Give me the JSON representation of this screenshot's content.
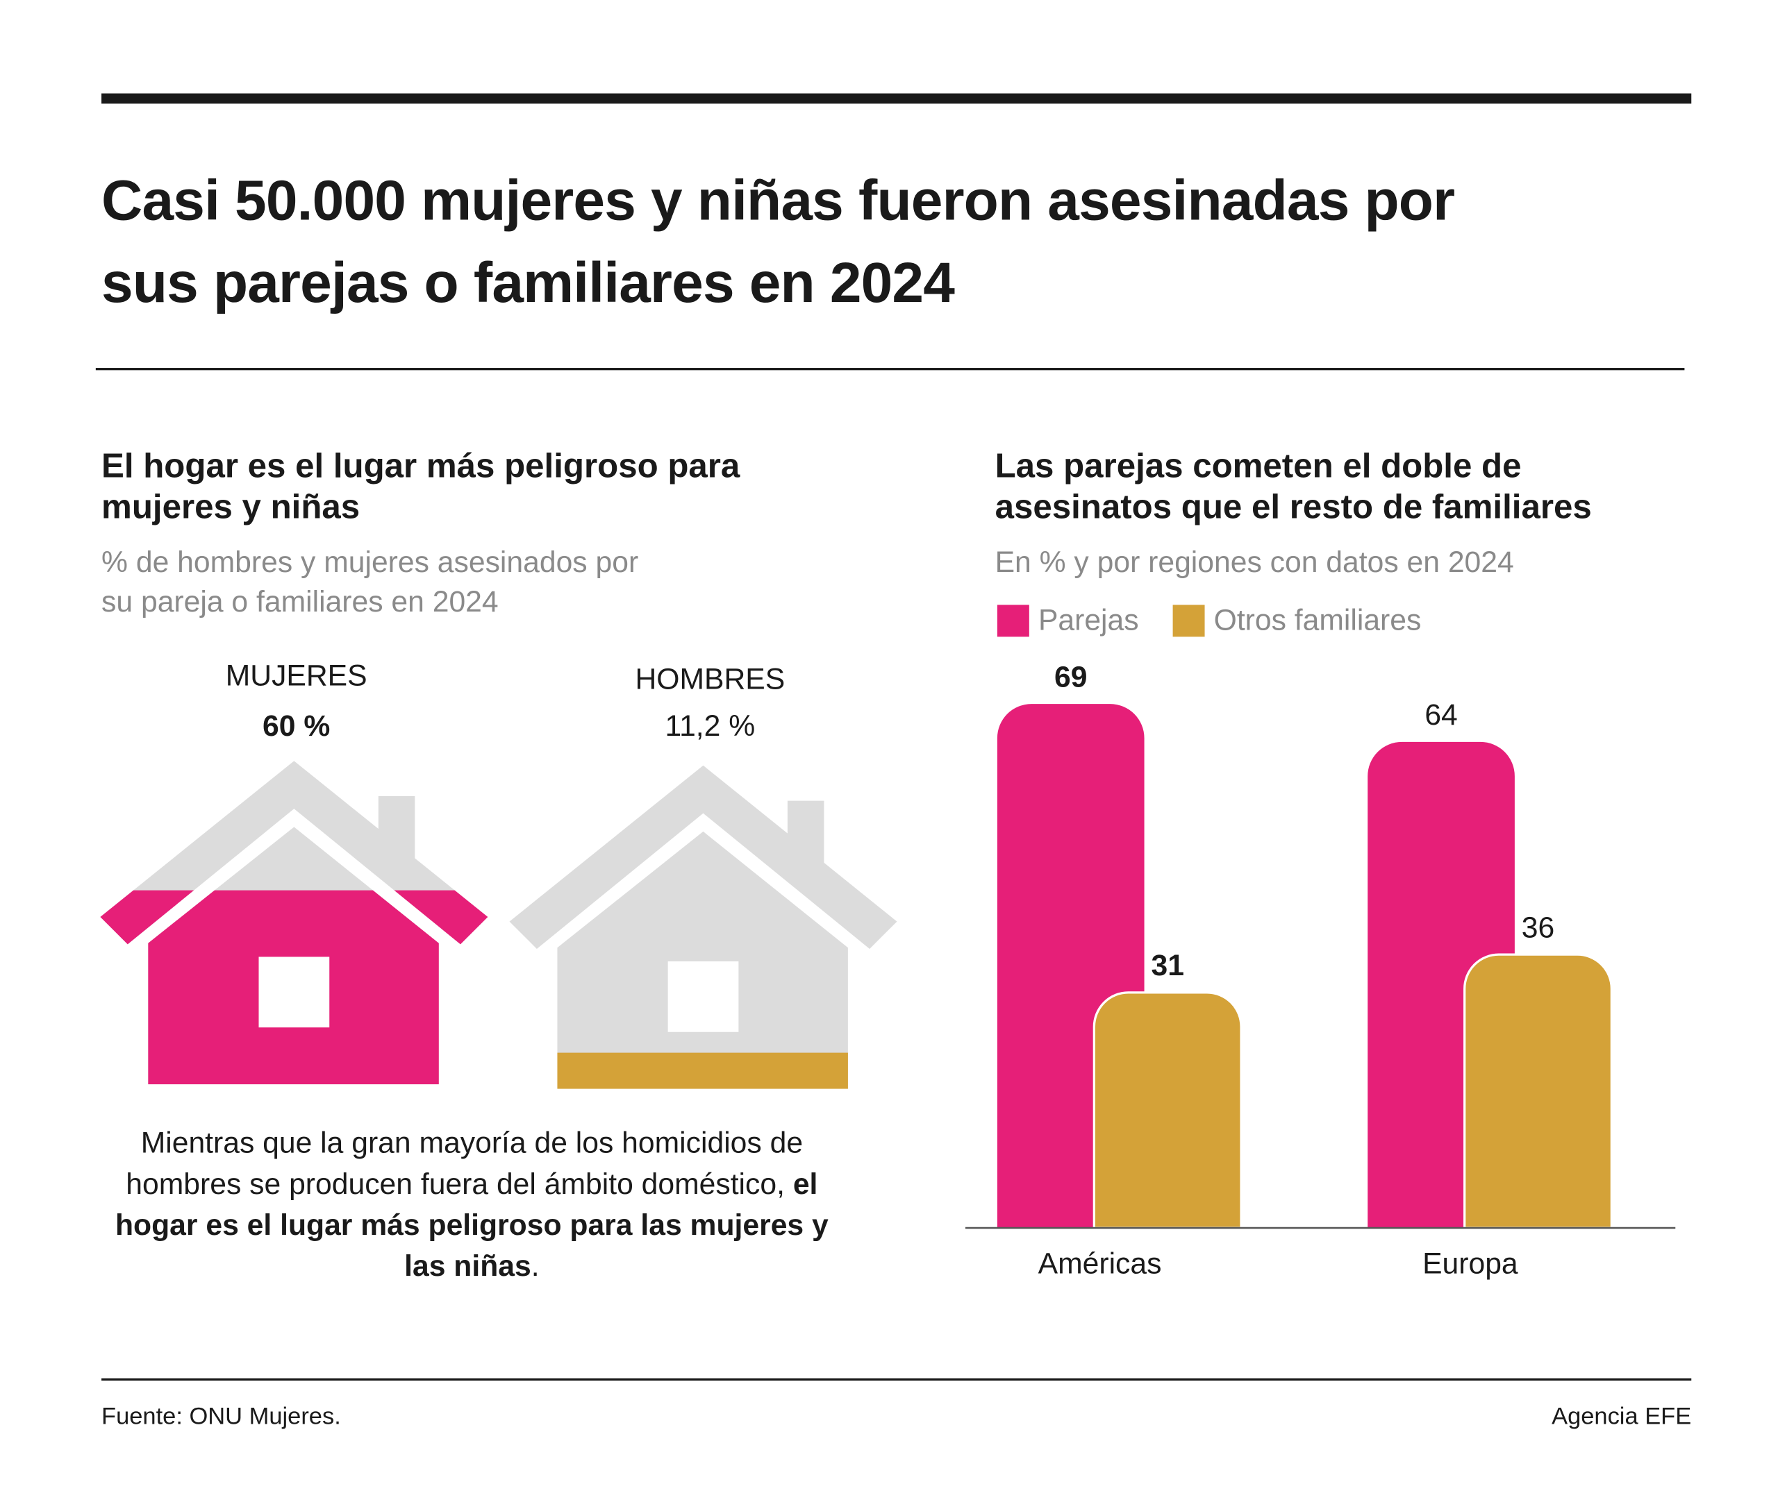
{
  "title": "Casi 50.000 mujeres y niñas fueron asesinadas por sus parejas o familiares en 2024",
  "chart_data": [
    {
      "type": "pictogram",
      "title": "El hogar es el lugar más peligroso para mujeres y niñas",
      "subtitle": "% de hombres y mujeres asesinados por su pareja o familiares en 2024",
      "categories": [
        "MUJERES",
        "HOMBRES"
      ],
      "values": [
        60,
        11.2
      ],
      "value_labels": [
        "60 %",
        "11,2 %"
      ],
      "colors": [
        "#e61f78",
        "#d4a238"
      ]
    },
    {
      "type": "bar",
      "title": "Las parejas cometen el doble de asesinatos que el resto de familiares",
      "subtitle": "En % y por regiones con datos en 2024",
      "categories": [
        "Américas",
        "Europa"
      ],
      "series": [
        {
          "name": "Parejas",
          "color": "#e61f78",
          "values": [
            69,
            64
          ]
        },
        {
          "name": "Otros familiares",
          "color": "#d4a238",
          "values": [
            31,
            36
          ]
        }
      ]
    }
  ],
  "note": [
    "Mientras que la gran mayoría de los homicidios de hombres se producen fuera del ámbito doméstico, ",
    "el hogar es el lugar más peligroso para las mujeres y las niñas",
    "."
  ],
  "source": "Fuente: ONU Mujeres.",
  "credit": "Agencia EFE"
}
